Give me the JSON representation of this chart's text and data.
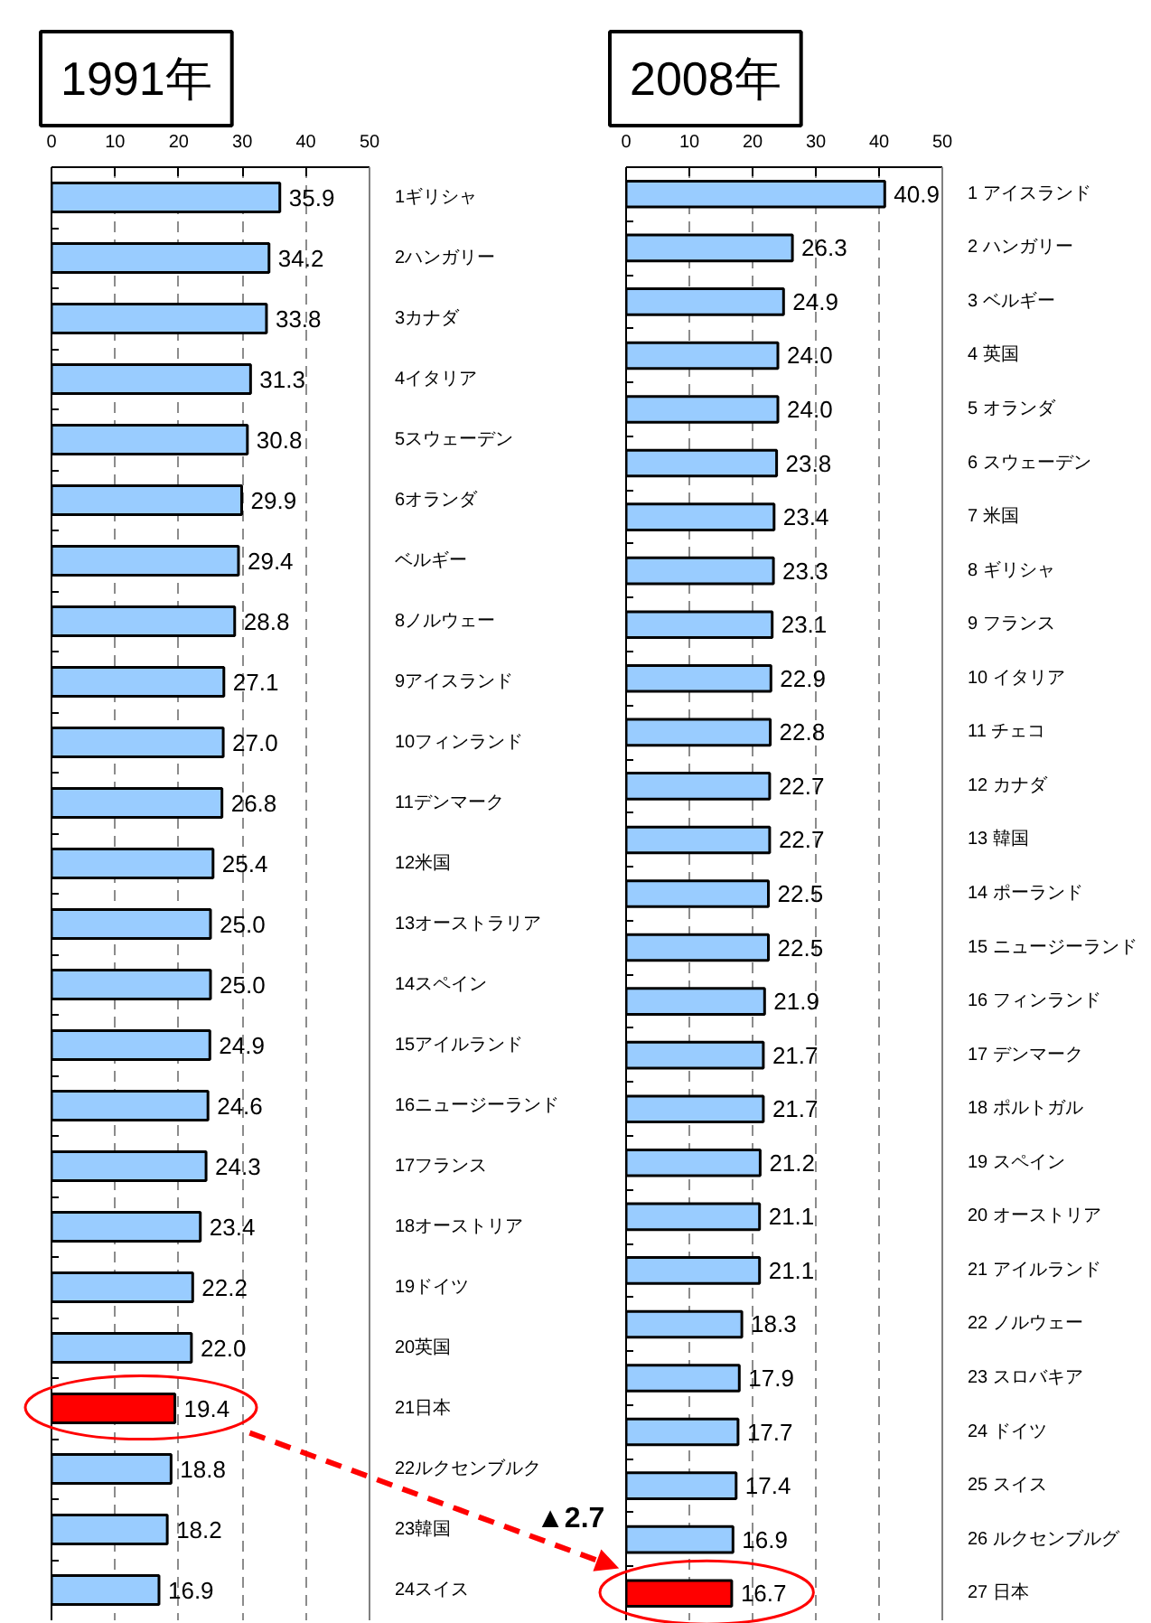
{
  "chart_data": [
    {
      "type": "bar",
      "orientation": "horizontal",
      "title": "1991年",
      "categories": [
        "1ギリシャ",
        "2ハンガリー",
        "3カナダ",
        "4イタリア",
        "5スウェーデン",
        "6オランダ",
        "ベルギー",
        "8ノルウェー",
        "9アイスランド",
        "10フィンランド",
        "11デンマーク",
        "12米国",
        "13オーストラリア",
        "14スペイン",
        "15アイルランド",
        "16ニュージーランド",
        "17フランス",
        "18オーストリア",
        "19ドイツ",
        "20英国",
        "21日本",
        "22ルクセンブルク",
        "23韓国",
        "24スイス"
      ],
      "values": [
        35.9,
        34.2,
        33.8,
        31.3,
        30.8,
        29.9,
        29.4,
        28.8,
        27.1,
        27.0,
        26.8,
        25.4,
        25.0,
        25.0,
        24.9,
        24.6,
        24.3,
        23.4,
        22.2,
        22.0,
        19.4,
        18.8,
        18.2,
        16.9
      ],
      "value_labels": [
        "35.9",
        "34.2",
        "33.8",
        "31.3",
        "30.8",
        "29.9",
        "29.4",
        "28.8",
        "27.1",
        "27.0",
        "26.8",
        "25.4",
        "25.0",
        "25.0",
        "24.9",
        "24.6",
        "24.3",
        "23.4",
        "22.2",
        "22.0",
        "19.4",
        "18.8",
        "18.2",
        "16.9"
      ],
      "colors": [
        "#99ccff",
        "#99ccff",
        "#99ccff",
        "#99ccff",
        "#99ccff",
        "#99ccff",
        "#99ccff",
        "#99ccff",
        "#99ccff",
        "#99ccff",
        "#99ccff",
        "#99ccff",
        "#99ccff",
        "#99ccff",
        "#99ccff",
        "#99ccff",
        "#99ccff",
        "#99ccff",
        "#99ccff",
        "#99ccff",
        "#ff0000",
        "#99ccff",
        "#99ccff",
        "#99ccff"
      ],
      "xlim": [
        0,
        50
      ],
      "xticks": [
        0,
        10,
        20,
        30,
        40,
        50
      ],
      "grid": "x"
    },
    {
      "type": "bar",
      "orientation": "horizontal",
      "title": "2008年",
      "categories": [
        "1 アイスランド",
        "2 ハンガリー",
        "3 ベルギー",
        "4 英国",
        "5 オランダ",
        "6 スウェーデン",
        "7 米国",
        "8 ギリシャ",
        "9 フランス",
        "10 イタリア",
        "11 チェコ",
        "12 カナダ",
        "13 韓国",
        "14 ポーランド",
        "15 ニュージーランド",
        "16 フィンランド",
        "17 デンマーク",
        "18 ポルトガル",
        "19 スペイン",
        "20 オーストリア",
        "21 アイルランド",
        "22 ノルウェー",
        "23 スロバキア",
        "24 ドイツ",
        "25 スイス",
        "26 ルクセンブルグ",
        "27 日本"
      ],
      "values": [
        40.9,
        26.3,
        24.9,
        24.0,
        24.0,
        23.8,
        23.4,
        23.3,
        23.1,
        22.9,
        22.8,
        22.7,
        22.7,
        22.5,
        22.5,
        21.9,
        21.7,
        21.7,
        21.2,
        21.1,
        21.1,
        18.3,
        17.9,
        17.7,
        17.4,
        16.9,
        16.7
      ],
      "value_labels": [
        "40.9",
        "26.3",
        "24.9",
        "24.0",
        "24.0",
        "23.8",
        "23.4",
        "23.3",
        "23.1",
        "22.9",
        "22.8",
        "22.7",
        "22.7",
        "22.5",
        "22.5",
        "21.9",
        "21.7",
        "21.7",
        "21.2",
        "21.1",
        "21.1",
        "18.3",
        "17.9",
        "17.7",
        "17.4",
        "16.9",
        "16.7"
      ],
      "colors": [
        "#99ccff",
        "#99ccff",
        "#99ccff",
        "#99ccff",
        "#99ccff",
        "#99ccff",
        "#99ccff",
        "#99ccff",
        "#99ccff",
        "#99ccff",
        "#99ccff",
        "#99ccff",
        "#99ccff",
        "#99ccff",
        "#99ccff",
        "#99ccff",
        "#99ccff",
        "#99ccff",
        "#99ccff",
        "#99ccff",
        "#99ccff",
        "#99ccff",
        "#99ccff",
        "#99ccff",
        "#99ccff",
        "#99ccff",
        "#ff0000"
      ],
      "xlim": [
        0,
        50
      ],
      "xticks": [
        0,
        10,
        20,
        30,
        40,
        50
      ],
      "grid": "x",
      "annotations": [
        "▲2.7"
      ]
    }
  ]
}
